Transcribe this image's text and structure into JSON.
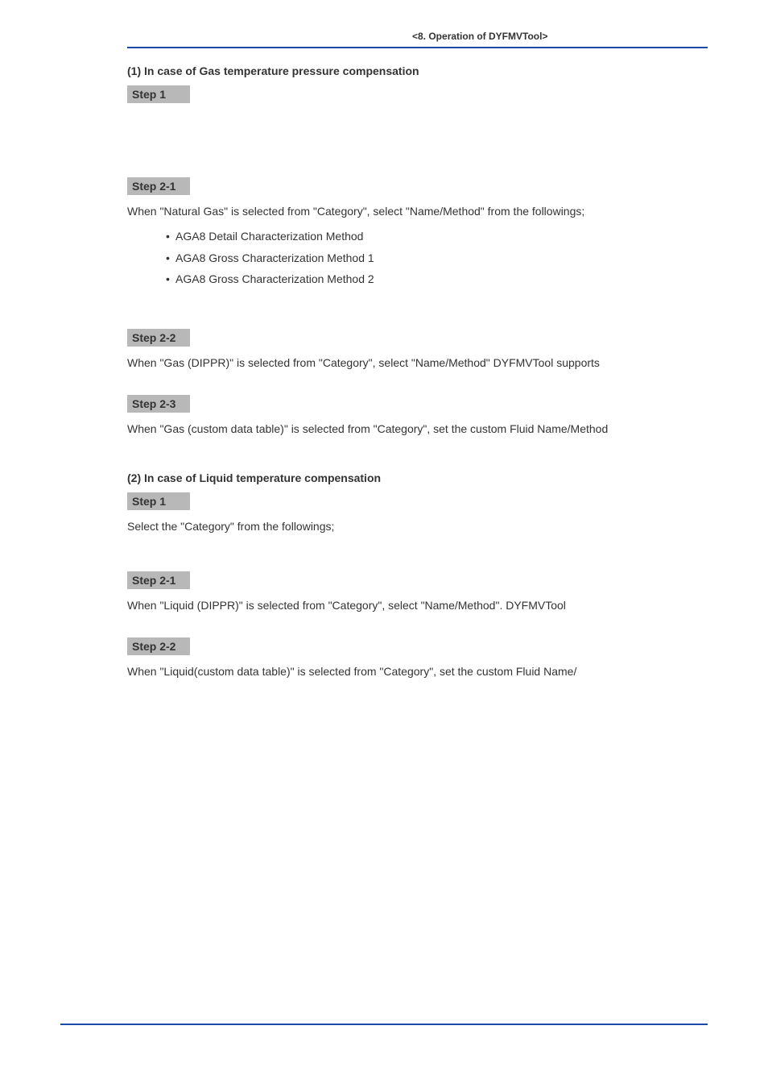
{
  "header": {
    "title": "<8.  Operation of DYFMVTool>",
    "rule_color": "#1a4ba8"
  },
  "section1": {
    "heading": "(1)   In case of Gas temperature pressure compensation",
    "step1": {
      "label": "Step 1"
    },
    "step2_1": {
      "label": "Step 2-1",
      "text": "When \"Natural Gas\" is selected from \"Category\", select \"Name/Method\" from the followings;",
      "bullets": [
        "AGA8 Detail Characterization Method",
        "AGA8 Gross Characterization Method 1",
        "AGA8 Gross Characterization Method 2"
      ]
    },
    "step2_2": {
      "label": "Step 2-2",
      "text": "When \"Gas (DIPPR)\" is selected from \"Category\", select \"Name/Method\" DYFMVTool supports"
    },
    "step2_3": {
      "label": "Step 2-3",
      "text": "When \"Gas (custom data table)\" is selected from \"Category\", set the custom Fluid Name/Method"
    }
  },
  "section2": {
    "heading": "(2)   In case of Liquid temperature compensation",
    "step1": {
      "label": "Step 1",
      "text": "Select the \"Category\" from the followings;"
    },
    "step2_1": {
      "label": "Step 2-1",
      "text": "When \"Liquid (DIPPR)\" is selected from \"Category\", select \"Name/Method\". DYFMVTool"
    },
    "step2_2": {
      "label": "Step 2-2",
      "text": "When \"Liquid(custom data table)\" is selected from \"Category\", set the custom Fluid Name/"
    }
  },
  "colors": {
    "text": "#333333",
    "step_bg": "#b8b8b8",
    "rule": "#1a4ba8",
    "page_bg": "#ffffff"
  }
}
